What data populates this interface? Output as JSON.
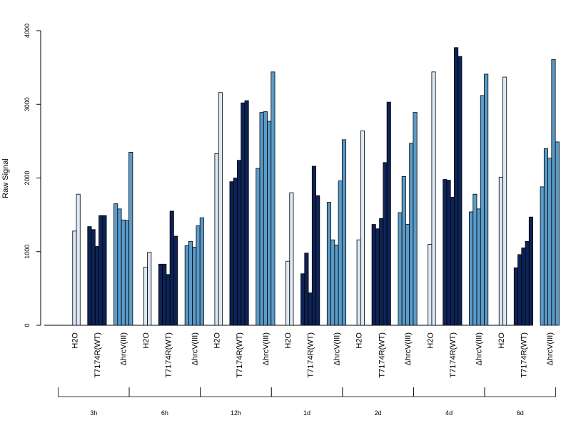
{
  "chart_data": {
    "type": "bar",
    "ylabel": "Raw Signal",
    "ylim": [
      0,
      4000
    ],
    "yticks": [
      0,
      1000,
      2000,
      3000,
      4000
    ],
    "conditions": [
      "H2O",
      "T7174R(WT)",
      "ΔhrcV(III)"
    ],
    "condition_colors": [
      "#dde8f5",
      "#0d2357",
      "#5a9bc9"
    ],
    "groups": [
      {
        "name": "3h",
        "bars": [
          [
            0,
            1280,
            1780
          ],
          [
            1340,
            1300,
            1070,
            1490,
            1490
          ],
          [
            1650,
            1580,
            1430,
            1420,
            2350
          ]
        ]
      },
      {
        "name": "6h",
        "bars": [
          [
            0,
            790,
            990
          ],
          [
            830,
            830,
            690,
            1550,
            1210
          ],
          [
            1080,
            1140,
            1060,
            1350,
            1460
          ]
        ]
      },
      {
        "name": "12h",
        "bars": [
          [
            0,
            2330,
            3160
          ],
          [
            1950,
            2000,
            2240,
            3020,
            3050
          ],
          [
            2130,
            2890,
            2900,
            2770,
            3440
          ]
        ]
      },
      {
        "name": "1d",
        "bars": [
          [
            0,
            870,
            1800
          ],
          [
            700,
            980,
            440,
            2160,
            1760
          ],
          [
            1670,
            1160,
            1090,
            1960,
            2520
          ]
        ]
      },
      {
        "name": "2d",
        "bars": [
          [
            0,
            1160,
            2640
          ],
          [
            1370,
            1310,
            1450,
            2210,
            3030
          ],
          [
            1530,
            2020,
            1370,
            2470,
            2890
          ]
        ]
      },
      {
        "name": "4d",
        "bars": [
          [
            0,
            1100,
            3440
          ],
          [
            1980,
            1970,
            1740,
            3770,
            3650
          ],
          [
            1540,
            1780,
            1580,
            3120,
            3410
          ]
        ]
      },
      {
        "name": "6d",
        "bars": [
          [
            0,
            2010,
            3370
          ],
          [
            780,
            960,
            1050,
            1140,
            1470
          ],
          [
            1880,
            2400,
            2270,
            3610,
            2490
          ]
        ]
      }
    ]
  }
}
